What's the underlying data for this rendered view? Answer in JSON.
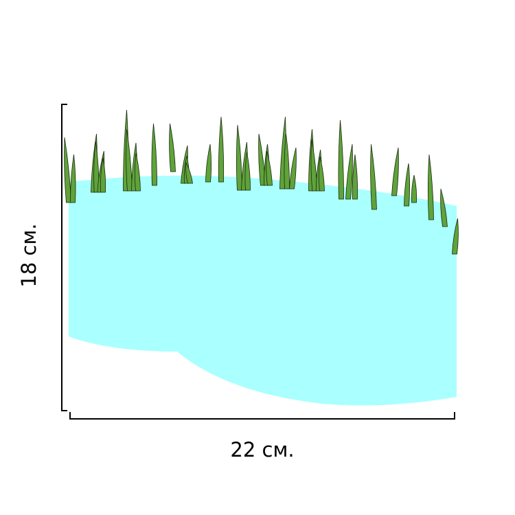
{
  "dimensions": {
    "width_label": "22 см.",
    "height_label": "18 см."
  }
}
